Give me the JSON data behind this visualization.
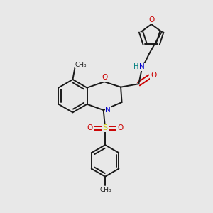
{
  "background_color": "#e8e8e8",
  "bond_color": "#1a1a1a",
  "oxygen_color": "#cc0000",
  "nitrogen_color": "#0000cc",
  "sulfur_color": "#cccc00",
  "nh_color": "#008080",
  "figsize": [
    3.0,
    3.0
  ],
  "dpi": 100,
  "xlim": [
    0,
    10
  ],
  "ylim": [
    0,
    10
  ]
}
